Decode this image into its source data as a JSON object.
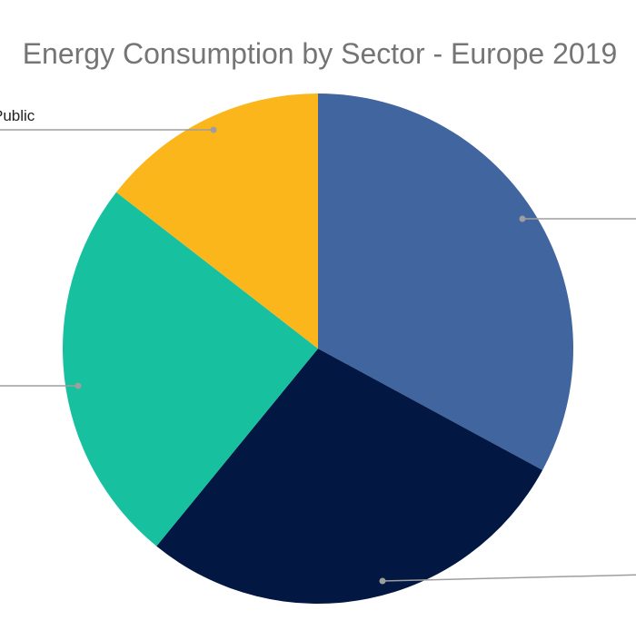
{
  "chart_data": {
    "type": "pie",
    "title": "Energy Consumption by Sector - Europe 2019",
    "start_angle_deg": 0,
    "direction": "clockwise",
    "slices": [
      {
        "label": "",
        "value": 32.9,
        "color": "#41659f"
      },
      {
        "label": "",
        "value": 28.0,
        "color": "#021741"
      },
      {
        "label": "",
        "value": 24.6,
        "color": "#17c19f"
      },
      {
        "label": "Public",
        "value": 14.5,
        "color": "#fbb61b"
      }
    ],
    "legend": "none",
    "leader_lines": true
  }
}
